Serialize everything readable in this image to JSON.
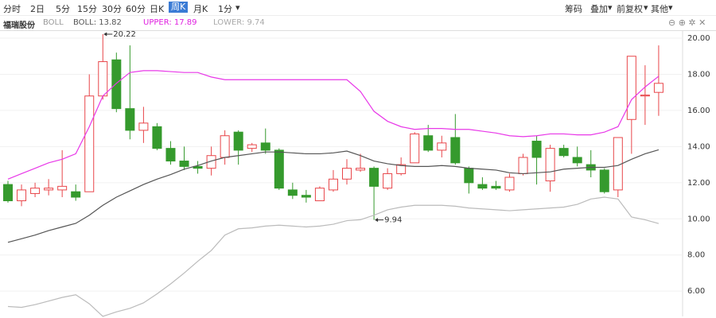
{
  "toolbar": {
    "tabs": [
      "分时",
      "2日",
      "5分",
      "15分",
      "30分",
      "60分",
      "日K",
      "周K",
      "月K",
      "1分"
    ],
    "selected": 7,
    "right": [
      "筹码",
      "叠加",
      "前复权",
      "其他"
    ]
  },
  "info": {
    "name": "福瑞股份",
    "indicator": "BOLL",
    "boll": "BOLL: 13.82",
    "upper": "UPPER: 17.89",
    "lower": "LOWER: 9.74"
  },
  "chart_data": {
    "type": "candlestick",
    "open": [
      11.9,
      11.0,
      11.4,
      11.6,
      11.6,
      11.5,
      11.5,
      16.8,
      18.8,
      16.1,
      14.9,
      15.1,
      13.9,
      13.2,
      12.9,
      12.8,
      13.4,
      14.8,
      13.9,
      14.2,
      13.8,
      11.6,
      11.3,
      11.0,
      11.6,
      12.2,
      12.7,
      12.8,
      11.7,
      12.5,
      13.1,
      14.6,
      13.8,
      14.5,
      12.8,
      11.9,
      11.8,
      11.6,
      12.5,
      14.3,
      12.1,
      13.9,
      13.4,
      13.0,
      12.7,
      11.6,
      15.5,
      16.8,
      17.0
    ],
    "high": [
      12.1,
      11.9,
      12.0,
      12.2,
      13.8,
      11.9,
      18.0,
      20.22,
      19.2,
      19.6,
      16.2,
      15.3,
      14.3,
      14.0,
      13.2,
      14.0,
      14.9,
      14.9,
      14.2,
      15.0,
      13.9,
      12.0,
      11.6,
      11.8,
      12.7,
      13.3,
      13.6,
      12.9,
      12.8,
      13.4,
      14.8,
      15.2,
      14.6,
      15.8,
      12.9,
      12.3,
      12.1,
      12.5,
      13.6,
      14.6,
      14.1,
      14.1,
      14.0,
      13.8,
      12.8,
      14.5,
      19.0,
      18.5,
      19.6
    ],
    "low": [
      10.9,
      10.7,
      11.2,
      11.3,
      11.2,
      11.0,
      11.5,
      16.6,
      15.9,
      14.4,
      14.2,
      13.8,
      13.0,
      12.7,
      12.5,
      12.4,
      13.0,
      13.0,
      13.7,
      13.6,
      11.6,
      11.1,
      10.9,
      11.0,
      11.5,
      11.9,
      12.6,
      9.94,
      11.6,
      12.4,
      13.1,
      13.7,
      13.4,
      13.0,
      11.4,
      11.6,
      11.6,
      11.5,
      12.4,
      11.9,
      11.5,
      13.4,
      12.9,
      12.3,
      11.4,
      11.2,
      13.6,
      15.2,
      15.7
    ],
    "close": [
      11.0,
      11.6,
      11.7,
      11.7,
      11.8,
      11.2,
      16.8,
      18.7,
      16.1,
      14.9,
      15.3,
      13.9,
      13.2,
      12.9,
      12.8,
      13.5,
      14.6,
      13.8,
      14.1,
      13.8,
      11.7,
      11.3,
      11.2,
      11.7,
      12.2,
      12.8,
      12.8,
      11.8,
      12.5,
      13.0,
      14.7,
      13.8,
      14.2,
      13.1,
      12.0,
      11.7,
      11.7,
      12.3,
      13.4,
      13.4,
      13.9,
      13.5,
      13.1,
      12.7,
      11.5,
      14.5,
      19.0,
      16.85,
      17.5
    ],
    "up_color": "#e8464a",
    "down_color": "#359a2d",
    "bands": [
      {
        "color": "#e838e8",
        "values": [
          12.2,
          12.5,
          12.8,
          13.1,
          13.3,
          13.6,
          15.1,
          16.8,
          17.5,
          18.1,
          18.2,
          18.2,
          18.15,
          18.1,
          18.1,
          17.85,
          17.7,
          17.7,
          17.7,
          17.7,
          17.7,
          17.7,
          17.7,
          17.7,
          17.7,
          17.7,
          17.05,
          15.95,
          15.4,
          15.1,
          14.95,
          15.0,
          15.0,
          14.95,
          14.95,
          14.85,
          14.75,
          14.6,
          14.55,
          14.6,
          14.7,
          14.7,
          14.65,
          14.65,
          14.8,
          15.1,
          16.6,
          17.3,
          17.89
        ]
      },
      {
        "color": "#555555",
        "values": [
          8.7,
          8.9,
          9.1,
          9.35,
          9.55,
          9.75,
          10.2,
          10.75,
          11.2,
          11.55,
          11.9,
          12.2,
          12.45,
          12.75,
          12.95,
          13.2,
          13.4,
          13.5,
          13.6,
          13.7,
          13.7,
          13.65,
          13.6,
          13.6,
          13.65,
          13.75,
          13.5,
          13.2,
          13.05,
          12.95,
          12.9,
          12.9,
          12.95,
          12.9,
          12.8,
          12.75,
          12.7,
          12.55,
          12.5,
          12.55,
          12.6,
          12.75,
          12.8,
          12.85,
          12.85,
          12.95,
          13.3,
          13.6,
          13.82
        ]
      },
      {
        "color": "#bbbbbb",
        "values": [
          5.15,
          5.1,
          5.25,
          5.45,
          5.65,
          5.8,
          5.3,
          4.6,
          4.85,
          5.05,
          5.35,
          5.85,
          6.4,
          7.0,
          7.65,
          8.25,
          9.1,
          9.45,
          9.5,
          9.6,
          9.65,
          9.6,
          9.55,
          9.6,
          9.7,
          9.9,
          9.95,
          10.2,
          10.5,
          10.65,
          10.75,
          10.75,
          10.75,
          10.7,
          10.6,
          10.55,
          10.5,
          10.45,
          10.5,
          10.55,
          10.6,
          10.65,
          10.8,
          11.1,
          11.2,
          11.1,
          10.1,
          9.95,
          9.74
        ]
      }
    ],
    "annotations": [
      "20.22",
      "9.94"
    ],
    "ylim": [
      4.6,
      20.44
    ],
    "yticks": [
      {
        "value": 6,
        "label": "6.00"
      },
      {
        "value": 8,
        "label": "8.00"
      },
      {
        "value": 10,
        "label": "10.00"
      },
      {
        "value": 12,
        "label": "12.00"
      },
      {
        "value": 14,
        "label": "14.00"
      },
      {
        "value": 16,
        "label": "16.00"
      },
      {
        "value": 18,
        "label": "18.00"
      },
      {
        "value": 20,
        "label": "20.00"
      }
    ],
    "grid": true
  }
}
